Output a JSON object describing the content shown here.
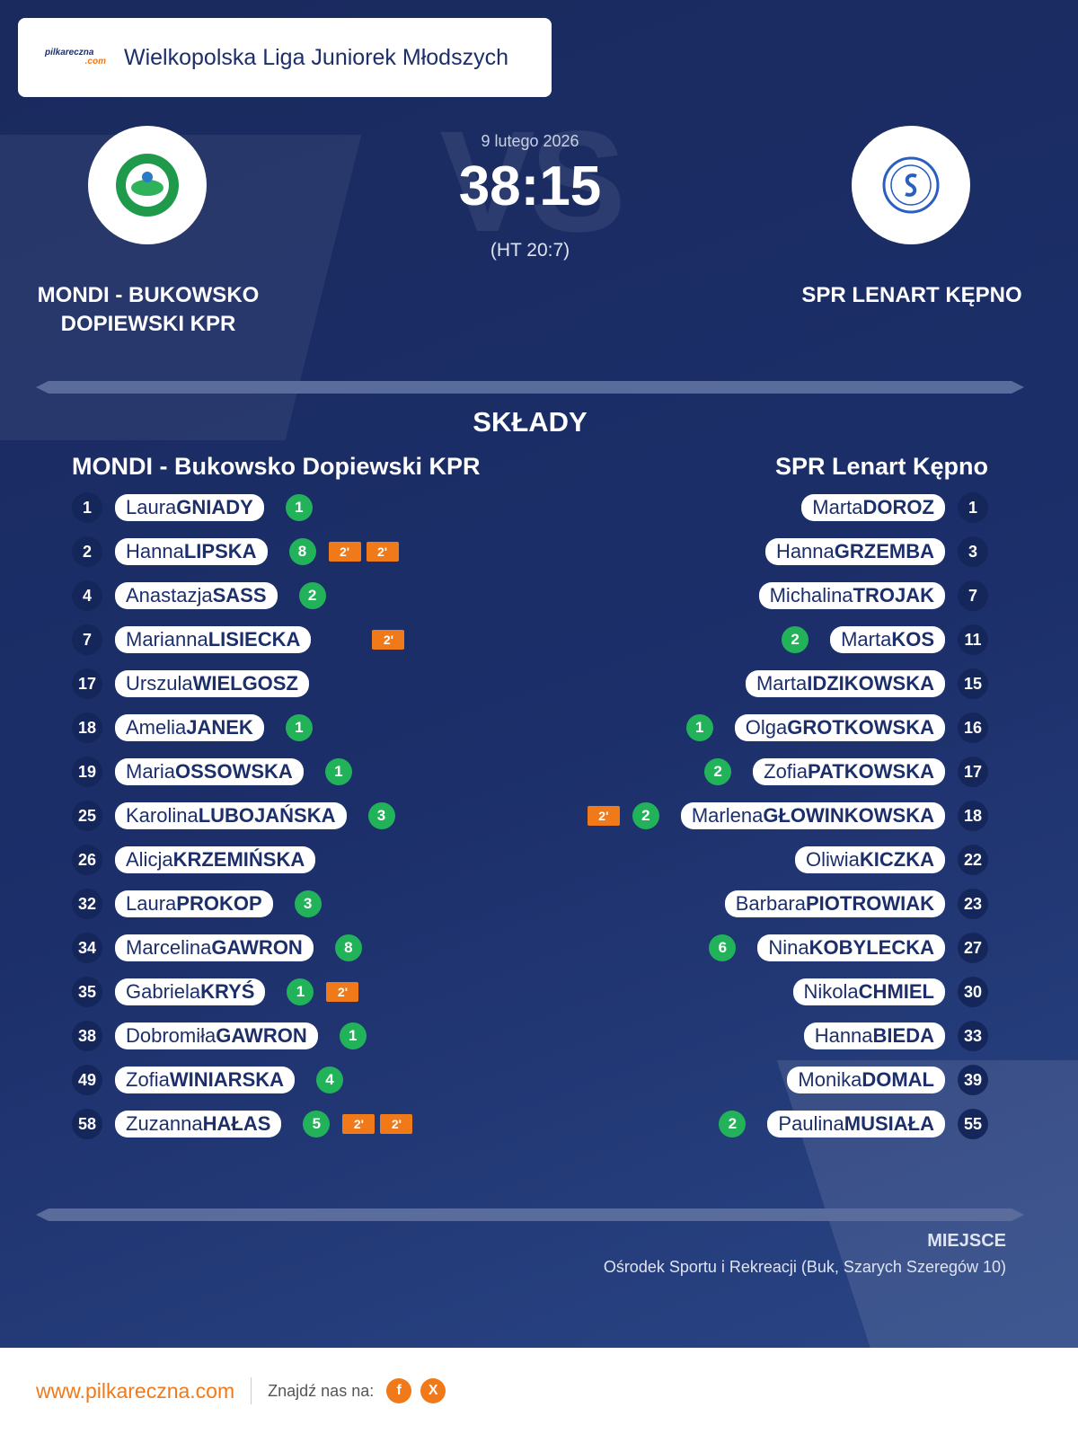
{
  "header": {
    "logo": "pilkareczna",
    "logo_suffix": ".com",
    "league": "Wielkopolska Liga Juniorek Młodszych"
  },
  "match": {
    "vs": "VS",
    "date": "9 lutego 2026",
    "score": "38:15",
    "halftime": "(HT 20:7)",
    "home": "MONDI - BUKOWSKO DOPIEWSKI KPR",
    "away": "SPR LENART KĘPNO"
  },
  "lineups": {
    "title": "SKŁADY",
    "home": {
      "name": "MONDI - Bukowsko Dopiewski KPR",
      "players": [
        {
          "number": 1,
          "first": "Laura",
          "last": "GNIADY",
          "goals": 1
        },
        {
          "number": 2,
          "first": "Hanna",
          "last": "LIPSKA",
          "goals": 8,
          "penalties": [
            "2'",
            "2'"
          ]
        },
        {
          "number": 4,
          "first": "Anastazja",
          "last": "SASS",
          "goals": 2
        },
        {
          "number": 7,
          "first": "Marianna",
          "last": "LISIECKA",
          "penalties": [
            "2'"
          ]
        },
        {
          "number": 17,
          "first": "Urszula",
          "last": "WIELGOSZ"
        },
        {
          "number": 18,
          "first": "Amelia",
          "last": "JANEK",
          "goals": 1
        },
        {
          "number": 19,
          "first": "Maria",
          "last": "OSSOWSKA",
          "goals": 1
        },
        {
          "number": 25,
          "first": "Karolina",
          "last": "LUBOJAŃSKA",
          "goals": 3
        },
        {
          "number": 26,
          "first": "Alicja",
          "last": "KRZEMIŃSKA"
        },
        {
          "number": 32,
          "first": "Laura",
          "last": "PROKOP",
          "goals": 3
        },
        {
          "number": 34,
          "first": "Marcelina",
          "last": "GAWRON",
          "goals": 8
        },
        {
          "number": 35,
          "first": "Gabriela",
          "last": "KRYŚ",
          "goals": 1,
          "penalties": [
            "2'"
          ]
        },
        {
          "number": 38,
          "first": "Dobromiła",
          "last": "GAWRON",
          "goals": 1
        },
        {
          "number": 49,
          "first": "Zofia",
          "last": "WINIARSKA",
          "goals": 4
        },
        {
          "number": 58,
          "first": "Zuzanna",
          "last": "HAŁAS",
          "goals": 5,
          "penalties": [
            "2'",
            "2'"
          ]
        }
      ]
    },
    "away": {
      "name": "SPR Lenart Kępno",
      "players": [
        {
          "number": 1,
          "first": "Marta",
          "last": "DOROZ"
        },
        {
          "number": 3,
          "first": "Hanna",
          "last": "GRZEMBA"
        },
        {
          "number": 7,
          "first": "Michalina",
          "last": "TROJAK"
        },
        {
          "number": 11,
          "first": "Marta",
          "last": "KOS",
          "goals": 2
        },
        {
          "number": 15,
          "first": "Marta",
          "last": "IDZIKOWSKA"
        },
        {
          "number": 16,
          "first": "Olga",
          "last": "GROTKOWSKA",
          "goals": 1
        },
        {
          "number": 17,
          "first": "Zofia",
          "last": "PATKOWSKA",
          "goals": 2
        },
        {
          "number": 18,
          "first": "Marlena",
          "last": "GŁOWINKOWSKA",
          "goals": 2,
          "penalties": [
            "2'"
          ]
        },
        {
          "number": 22,
          "first": "Oliwia",
          "last": "KICZKA"
        },
        {
          "number": 23,
          "first": "Barbara",
          "last": "PIOTROWIAK"
        },
        {
          "number": 27,
          "first": "Nina",
          "last": "KOBYLECKA",
          "goals": 6
        },
        {
          "number": 30,
          "first": "Nikola",
          "last": "CHMIEL"
        },
        {
          "number": 33,
          "first": "Hanna",
          "last": "BIEDA"
        },
        {
          "number": 39,
          "first": "Monika",
          "last": "DOMAL"
        },
        {
          "number": 55,
          "first": "Paulina",
          "last": "MUSIAŁA",
          "goals": 2
        }
      ]
    }
  },
  "venue": {
    "label": "MIEJSCE",
    "name": "Ośrodek Sportu i Rekreacji (Buk, Szarych Szeregów 10)"
  },
  "footer": {
    "site": "www.pilkareczna.com",
    "find_us": "Znajdź nas na:",
    "facebook": "f",
    "x": "X"
  }
}
